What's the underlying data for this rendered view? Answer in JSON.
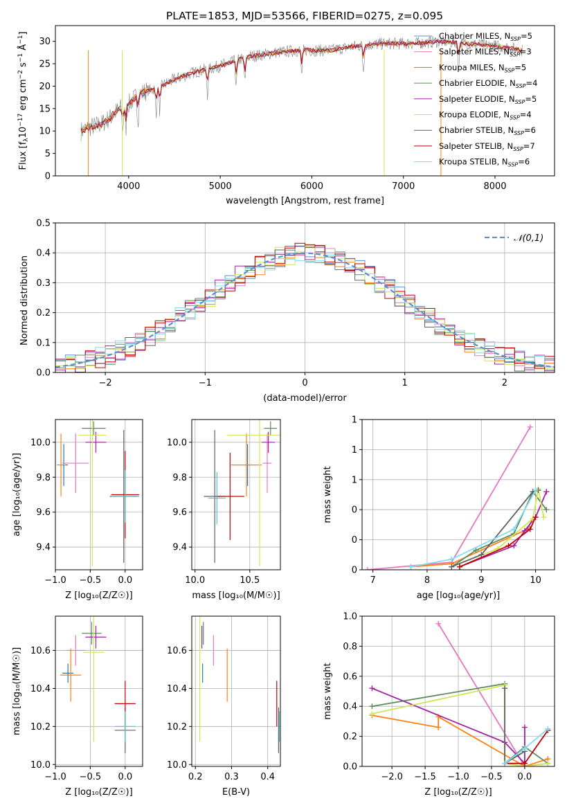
{
  "figure_title": "PLATE=1853, MJD=53566, FIBERID=0275, z=0.095",
  "legend_colors": [
    "#ff9500",
    "#ff7f0e",
    "#a0522d",
    "#5f8a5f",
    "#a020a0",
    "#cfe655",
    "#606060",
    "#c00000",
    "#80dcee"
  ],
  "chart_data": [
    {
      "type": "line",
      "name": "spectrum",
      "xlabel": "wavelength [Angstrom, rest frame]",
      "ylabel": "Flux [f_λ 10^-17 erg cm^-2 s^-1 Å^-1]",
      "xlim": [
        3200,
        8650
      ],
      "ylim": [
        0,
        33.5
      ],
      "xticks": [
        4000,
        5000,
        6000,
        7000,
        8000
      ],
      "yticks": [
        0,
        5,
        10,
        15,
        20,
        25,
        30
      ],
      "continuum": {
        "x": [
          3480,
          3600,
          3700,
          3800,
          3900,
          4000,
          4100,
          4200,
          4300,
          4500,
          4700,
          5000,
          5300,
          5600,
          5900,
          6200,
          6500,
          6800,
          7100,
          7400,
          7700,
          8000,
          8300
        ],
        "y": [
          10,
          11,
          11.5,
          13,
          15,
          16,
          18,
          19,
          19.5,
          21.5,
          23,
          24.5,
          26.5,
          27.5,
          28,
          28,
          29,
          29.5,
          29.5,
          30,
          29.5,
          29,
          28
        ]
      },
      "legend": [
        "Chabrier MILES, N_SSP=5",
        "Salpeter MILES, N_SSP=3",
        "Kroupa MILES, N_SSP=5",
        "Chabrier ELODIE, N_SSP=4",
        "Salpeter ELODIE, N_SSP=5",
        "Kroupa ELODIE, N_SSP=4",
        "Chabrier STELIB, N_SSP=6",
        "Salpeter STELIB, N_SSP=7",
        "Kroupa STELIB, N_SSP=6"
      ]
    },
    {
      "type": "line",
      "name": "residual histogram",
      "xlabel": "(data-model)/error",
      "ylabel": "Normed distribution",
      "xlim": [
        -2.5,
        2.5
      ],
      "ylim": [
        0,
        0.5
      ],
      "xticks": [
        -2,
        -1,
        0,
        1,
        2
      ],
      "yticks": [
        0.0,
        0.1,
        0.2,
        0.3,
        0.4,
        0.5
      ],
      "legend": [
        "𝒩(0,1)"
      ],
      "grid": true
    },
    {
      "type": "scatter",
      "name": "age vs Z",
      "xlabel": "Z [log10(Z/Z☉)]",
      "ylabel": "age [log10(age/yr)]",
      "xlim": [
        -1.0,
        0.25
      ],
      "ylim": [
        9.27,
        10.13
      ],
      "xticks": [
        -1.0,
        -0.5,
        0.0
      ],
      "yticks": [
        9.4,
        9.6,
        9.8,
        10.0
      ],
      "points": [
        {
          "x": -0.88,
          "y": 9.87,
          "xerr": 0.06,
          "yerr": 0.12,
          "color": "#1f77b4"
        },
        {
          "x": -0.92,
          "y": 9.87,
          "xerr": 0.06,
          "yerr": 0.18,
          "color": "#ff7f0e"
        },
        {
          "x": -0.71,
          "y": 9.88,
          "xerr": 0.19,
          "yerr": 0.17,
          "color": "#e377c2"
        },
        {
          "x": -0.45,
          "y": 10.08,
          "xerr": 0.17,
          "yerr": 0.04,
          "color": "#5f8a5f"
        },
        {
          "x": -0.42,
          "y": 10.0,
          "xerr": 0.15,
          "yerr": 0.06,
          "color": "#a020a0"
        },
        {
          "x": -0.47,
          "y": 10.04,
          "xerr": 0.2,
          "yerr": 0.75,
          "color": "#cfe655"
        },
        {
          "x": -0.02,
          "y": 9.69,
          "xerr": 0.2,
          "yerr": 0.38,
          "color": "#606060"
        },
        {
          "x": 0.0,
          "y": 9.7,
          "xerr": 0.2,
          "yerr": 0.25,
          "color": "#c00000"
        },
        {
          "x": 0.0,
          "y": 9.69,
          "xerr": 0.2,
          "yerr": 0.15,
          "color": "#4fc3d4"
        }
      ]
    },
    {
      "type": "scatter",
      "name": "age vs mass",
      "xlabel": "mass [log10(M/M☉)]",
      "ylabel": "",
      "xlim": [
        9.97,
        10.78
      ],
      "ylim": [
        9.27,
        10.13
      ],
      "xticks": [
        10.0,
        10.5
      ],
      "yticks": [
        9.4,
        9.6,
        9.8,
        10.0
      ],
      "points": [
        {
          "x": 10.48,
          "y": 9.87,
          "xerr": 0.03,
          "yerr": 0.12,
          "color": "#1f77b4"
        },
        {
          "x": 10.47,
          "y": 9.87,
          "xerr": 0.14,
          "yerr": 0.18,
          "color": "#ff7f0e"
        },
        {
          "x": 10.66,
          "y": 9.88,
          "xerr": 0.04,
          "yerr": 0.17,
          "color": "#e377c2"
        },
        {
          "x": 10.69,
          "y": 10.08,
          "xerr": 0.06,
          "yerr": 0.04,
          "color": "#5f8a5f"
        },
        {
          "x": 10.67,
          "y": 10.0,
          "xerr": 0.06,
          "yerr": 0.06,
          "color": "#a020a0"
        },
        {
          "x": 10.59,
          "y": 10.04,
          "xerr": 0.3,
          "yerr": 0.75,
          "color": "#cfe655"
        },
        {
          "x": 10.18,
          "y": 9.69,
          "xerr": 0.1,
          "yerr": 0.38,
          "color": "#606060"
        },
        {
          "x": 10.32,
          "y": 9.69,
          "xerr": 0.13,
          "yerr": 0.25,
          "color": "#c00000"
        },
        {
          "x": 10.2,
          "y": 9.68,
          "xerr": 0.08,
          "yerr": 0.15,
          "color": "#4fc3d4"
        }
      ]
    },
    {
      "type": "line",
      "name": "mass weight vs age",
      "xlabel": "age [log10(age/yr)]",
      "ylabel": "mass weight",
      "xlim": [
        6.8,
        10.35
      ],
      "ylim": [
        0,
        1.0
      ],
      "xticks": [
        7,
        8,
        9,
        10
      ],
      "yticks": [
        0.0,
        0.2,
        0.4,
        0.6,
        0.8,
        1.0
      ],
      "grid": true,
      "series": [
        {
          "color": "#e377c2",
          "x": [
            6.9,
            8.45,
            9.9
          ],
          "y": [
            0.0,
            0.05,
            0.95
          ]
        },
        {
          "color": "#ff7f0e",
          "x": [
            7.7,
            8.45,
            9.85,
            9.95
          ],
          "y": [
            0.02,
            0.04,
            0.27,
            0.34
          ]
        },
        {
          "color": "#5f8a5f",
          "x": [
            8.45,
            8.9,
            9.6,
            9.95,
            10.2
          ],
          "y": [
            0.02,
            0.13,
            0.24,
            0.52,
            0.4
          ]
        },
        {
          "color": "#a020a0",
          "x": [
            8.6,
            9.6,
            9.8,
            10.0,
            10.2
          ],
          "y": [
            0.02,
            0.16,
            0.26,
            0.35,
            0.52
          ]
        },
        {
          "color": "#cfe655",
          "x": [
            8.45,
            9.3,
            9.95,
            10.05,
            10.15
          ],
          "y": [
            0.02,
            0.14,
            0.34,
            0.54,
            0.35
          ]
        },
        {
          "color": "#606060",
          "x": [
            8.45,
            9.0,
            9.95,
            10.05
          ],
          "y": [
            0.02,
            0.1,
            0.52,
            0.53
          ]
        },
        {
          "color": "#c00000",
          "x": [
            8.6,
            9.5,
            9.9,
            10.0
          ],
          "y": [
            0.02,
            0.16,
            0.27,
            0.35
          ]
        },
        {
          "color": "#80dcee",
          "x": [
            7.7,
            8.45,
            9.6,
            10.0
          ],
          "y": [
            0.02,
            0.07,
            0.27,
            0.53
          ]
        }
      ]
    },
    {
      "type": "scatter",
      "name": "mass vs Z",
      "xlabel": "Z [log10(Z/Z☉)]",
      "ylabel": "mass [log10(M/M☉)]",
      "xlim": [
        -1.0,
        0.25
      ],
      "ylim": [
        9.99,
        10.78
      ],
      "xticks": [
        -1.0,
        -0.5,
        0.0
      ],
      "yticks": [
        10.0,
        10.2,
        10.4,
        10.6
      ],
      "points": [
        {
          "x": -0.82,
          "y": 10.48,
          "xerr": 0.08,
          "yerr": 0.05,
          "color": "#1f77b4"
        },
        {
          "x": -0.78,
          "y": 10.47,
          "xerr": 0.15,
          "yerr": 0.14,
          "color": "#ff7f0e"
        },
        {
          "x": -0.71,
          "y": 10.6,
          "xerr": 0.14,
          "yerr": 0.08,
          "color": "#e377c2"
        },
        {
          "x": -0.48,
          "y": 10.69,
          "xerr": 0.14,
          "yerr": 0.06,
          "color": "#5f8a5f"
        },
        {
          "x": -0.42,
          "y": 10.67,
          "xerr": 0.15,
          "yerr": 0.06,
          "color": "#a020a0"
        },
        {
          "x": -0.45,
          "y": 10.59,
          "xerr": 0.15,
          "yerr": 0.47,
          "color": "#cfe655"
        },
        {
          "x": 0.0,
          "y": 10.18,
          "xerr": 0.15,
          "yerr": 0.12,
          "color": "#606060"
        },
        {
          "x": 0.0,
          "y": 10.32,
          "xerr": 0.15,
          "yerr": 0.12,
          "color": "#c00000"
        },
        {
          "x": 0.0,
          "y": 10.2,
          "xerr": 0.15,
          "yerr": 0.08,
          "color": "#4fc3d4"
        }
      ]
    },
    {
      "type": "scatter",
      "name": "mass vs E(B-V)",
      "xlabel": "E(B-V)",
      "ylabel": "",
      "xlim": [
        0.19,
        0.435
      ],
      "ylim": [
        9.99,
        10.78
      ],
      "xticks": [
        0.2,
        0.3,
        0.4
      ],
      "yticks": [
        10.0,
        10.2,
        10.4,
        10.6
      ],
      "points": [
        {
          "x": 0.22,
          "y": 10.48,
          "xerr": 0.0,
          "yerr": 0.05,
          "color": "#1f77b4"
        },
        {
          "x": 0.288,
          "y": 10.47,
          "xerr": 0.0,
          "yerr": 0.14,
          "color": "#ff7f0e"
        },
        {
          "x": 0.25,
          "y": 10.6,
          "xerr": 0.0,
          "yerr": 0.08,
          "color": "#e377c2"
        },
        {
          "x": 0.222,
          "y": 10.69,
          "xerr": 0.0,
          "yerr": 0.06,
          "color": "#5f8a5f"
        },
        {
          "x": 0.218,
          "y": 10.67,
          "xerr": 0.0,
          "yerr": 0.06,
          "color": "#a020a0"
        },
        {
          "x": 0.212,
          "y": 10.59,
          "xerr": 0.0,
          "yerr": 0.47,
          "color": "#cfe655"
        },
        {
          "x": 0.43,
          "y": 10.18,
          "xerr": 0.0,
          "yerr": 0.12,
          "color": "#606060"
        },
        {
          "x": 0.425,
          "y": 10.32,
          "xerr": 0.0,
          "yerr": 0.12,
          "color": "#c00000"
        },
        {
          "x": 0.432,
          "y": 10.2,
          "xerr": 0.0,
          "yerr": 0.08,
          "color": "#4fc3d4"
        }
      ]
    },
    {
      "type": "line",
      "name": "mass weight vs Z",
      "xlabel": "Z [log10(Z/Z☉)]",
      "ylabel": "mass weight",
      "xlim": [
        -2.45,
        0.45
      ],
      "ylim": [
        0,
        1.0
      ],
      "xticks": [
        -2.0,
        -1.5,
        -1.0,
        -0.5,
        0.0
      ],
      "yticks": [
        0.0,
        0.2,
        0.4,
        0.6,
        0.8,
        1.0
      ],
      "grid": true,
      "series": [
        {
          "color": "#e377c2",
          "x": [
            -1.3,
            0.0,
            0.35
          ],
          "y": [
            0.95,
            0.0,
            0.02
          ]
        },
        {
          "color": "#ff7f0e",
          "x": [
            -2.3,
            -1.3,
            -1.3,
            0.0,
            0.35
          ],
          "y": [
            0.34,
            0.26,
            0.33,
            0.0,
            0.05
          ]
        },
        {
          "color": "#5f8a5f",
          "x": [
            -2.3,
            -0.3,
            -0.3,
            0.0,
            0.35
          ],
          "y": [
            0.4,
            0.55,
            0.02,
            0.13,
            0.02
          ]
        },
        {
          "color": "#a020a0",
          "x": [
            -2.3,
            -0.3,
            0.0,
            0.0
          ],
          "y": [
            0.52,
            0.16,
            0.02,
            0.26
          ]
        },
        {
          "color": "#cfe655",
          "x": [
            -2.3,
            -0.3,
            -0.3,
            0.0,
            0.35
          ],
          "y": [
            0.35,
            0.54,
            0.02,
            0.0,
            0.02
          ]
        },
        {
          "color": "#606060",
          "x": [
            -0.3,
            -0.3,
            0.0
          ],
          "y": [
            0.52,
            0.02,
            0.1
          ]
        },
        {
          "color": "#c00000",
          "x": [
            -0.3,
            0.0,
            0.35
          ],
          "y": [
            0.02,
            0.02,
            0.24
          ]
        },
        {
          "color": "#80dcee",
          "x": [
            -0.3,
            0.0,
            0.35
          ],
          "y": [
            0.02,
            0.12,
            0.25
          ]
        }
      ]
    }
  ]
}
